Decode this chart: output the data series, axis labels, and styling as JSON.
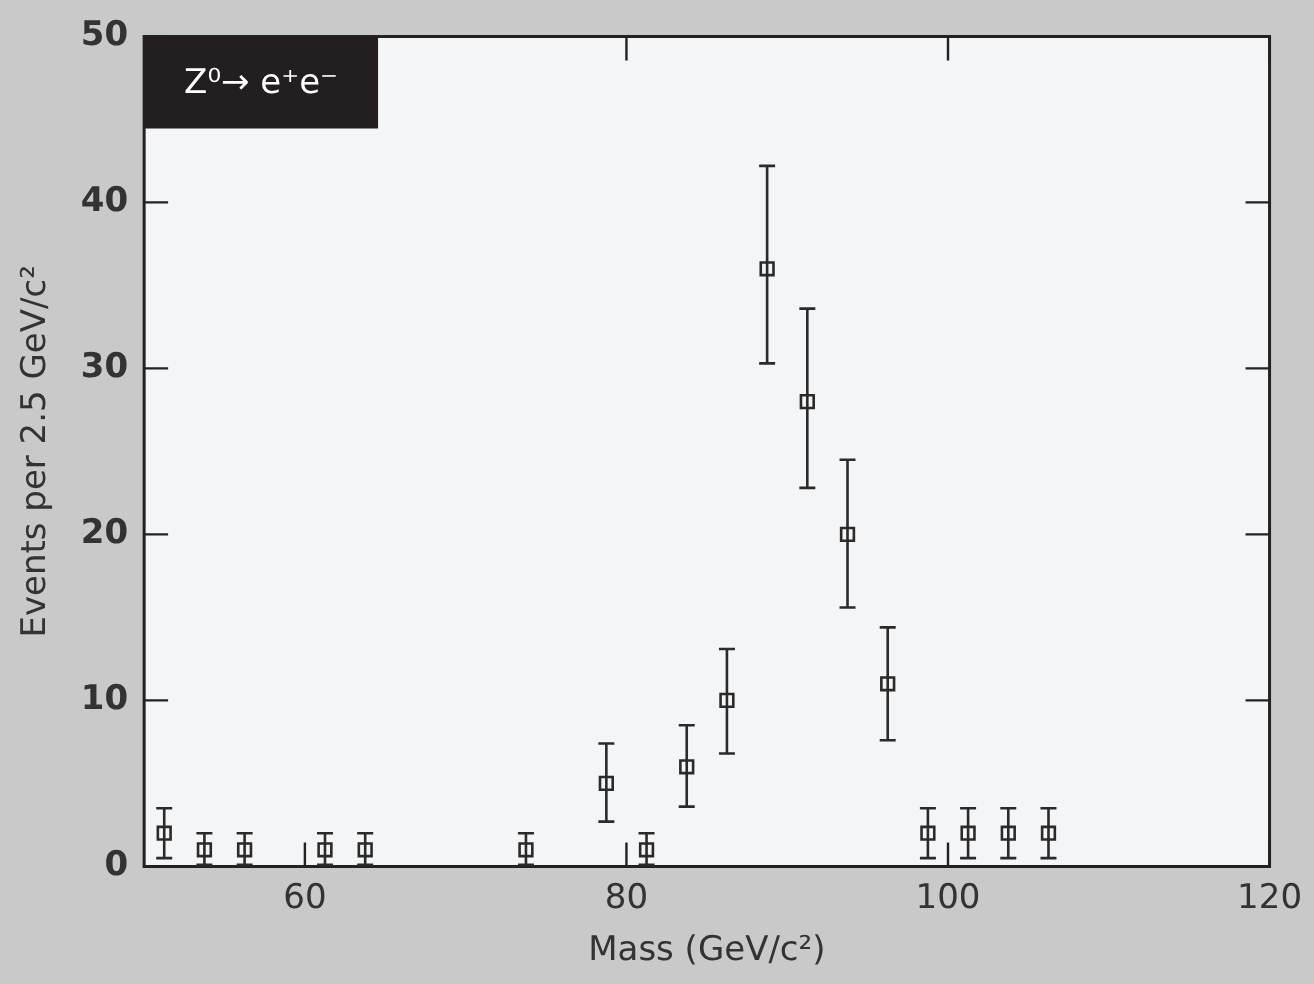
{
  "chart_data": {
    "type": "scatter",
    "title": "Z⁰→ e⁺e⁻",
    "xlabel": "Mass (GeV/c²)",
    "ylabel": "Events per 2.5 GeV/c²",
    "x": [
      51.25,
      53.75,
      56.25,
      61.25,
      63.75,
      73.75,
      78.75,
      81.25,
      83.75,
      86.25,
      88.75,
      91.25,
      93.75,
      96.25,
      98.75,
      101.25,
      103.75,
      106.25
    ],
    "values": [
      2,
      1,
      1,
      1,
      1,
      1,
      5,
      1,
      6,
      10,
      36,
      28,
      20,
      11,
      2,
      2,
      2,
      2
    ],
    "errors": [
      [
        0.5,
        3.5
      ],
      [
        0.1,
        2.0
      ],
      [
        0.1,
        2.0
      ],
      [
        0.1,
        2.0
      ],
      [
        0.1,
        2.0
      ],
      [
        0.1,
        2.0
      ],
      [
        2.7,
        7.4
      ],
      [
        0.1,
        2.0
      ],
      [
        3.6,
        8.5
      ],
      [
        6.8,
        13.1
      ],
      [
        30.3,
        42.2
      ],
      [
        22.8,
        33.6
      ],
      [
        15.6,
        24.5
      ],
      [
        7.6,
        14.4
      ],
      [
        0.5,
        3.5
      ],
      [
        0.5,
        3.5
      ],
      [
        0.5,
        3.5
      ],
      [
        0.5,
        3.5
      ]
    ],
    "color": "#2a2a2a",
    "marker": "square",
    "xlim": [
      50,
      120
    ],
    "xticks": [
      60,
      80,
      100,
      120
    ],
    "ylim": [
      0,
      50
    ],
    "yticks": [
      0,
      10,
      20,
      30,
      40,
      50
    ],
    "grid": false,
    "legend": false
  }
}
